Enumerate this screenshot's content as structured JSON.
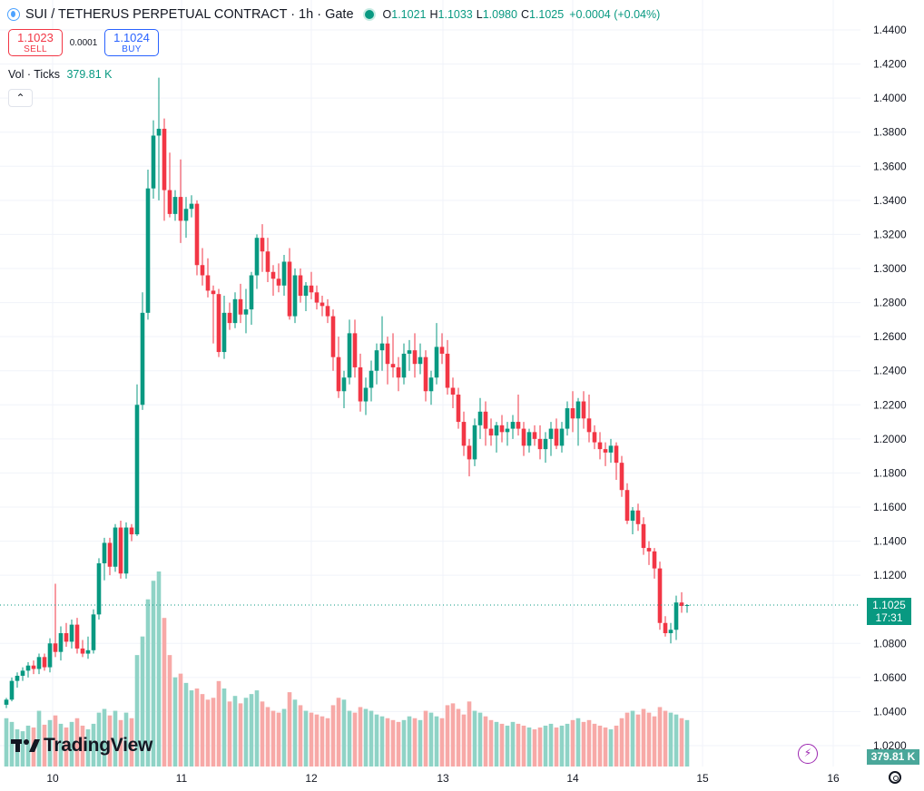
{
  "header": {
    "symbol": "SUI / TETHERUS PERPETUAL CONTRACT · 1h · Gate",
    "open_label": "O",
    "open": "1.1021",
    "high_label": "H",
    "high": "1.1033",
    "low_label": "L",
    "low": "1.0980",
    "close_label": "C",
    "close": "1.1025",
    "change": "+0.0004 (+0.04%)"
  },
  "trade": {
    "sell_price": "1.1023",
    "sell_label": "SELL",
    "spread": "0.0001",
    "buy_price": "1.1024",
    "buy_label": "BUY"
  },
  "volume_legend": {
    "label": "Vol · Ticks",
    "value": "379.81 K"
  },
  "brand": {
    "name": "TradingView"
  },
  "last_price_label": {
    "price": "1.1025",
    "countdown": "17:31"
  },
  "volume_label": "379.81 K",
  "colors": {
    "up": "#089981",
    "down": "#f23645",
    "vol_up": "#8fd3c6",
    "vol_down": "#f7a9a7",
    "grid": "#f0f3fa"
  },
  "icons": [
    "sui-logo-icon",
    "market-open-dot-icon",
    "chevron-up-icon",
    "tradingview-logo-icon",
    "lightning-icon",
    "settings-gear-icon"
  ],
  "chart_data": {
    "type": "candlestick",
    "ylim": [
      1.0,
      1.45
    ],
    "yticks": [
      "1.4400",
      "1.4200",
      "1.4000",
      "1.3800",
      "1.3600",
      "1.3400",
      "1.3200",
      "1.3000",
      "1.2800",
      "1.2600",
      "1.2400",
      "1.2200",
      "1.2000",
      "1.1800",
      "1.1600",
      "1.1400",
      "1.1200",
      "1.0800",
      "1.0600",
      "1.0400",
      "1.0200"
    ],
    "xticks": [
      {
        "label": "10",
        "x": 10
      },
      {
        "label": "11",
        "x": 34
      },
      {
        "label": "12",
        "x": 58
      },
      {
        "label": "13",
        "x": 82
      },
      {
        "label": "14",
        "x": 106
      },
      {
        "label": "15",
        "x": 130
      },
      {
        "label": "16",
        "x": 154
      }
    ],
    "last_price": 1.1025,
    "candles": [
      [
        1.044,
        1.048,
        1.042,
        1.047
      ],
      [
        1.047,
        1.06,
        1.046,
        1.058
      ],
      [
        1.058,
        1.063,
        1.054,
        1.061
      ],
      [
        1.061,
        1.066,
        1.058,
        1.064
      ],
      [
        1.064,
        1.069,
        1.06,
        1.067
      ],
      [
        1.067,
        1.07,
        1.062,
        1.065
      ],
      [
        1.065,
        1.074,
        1.062,
        1.072
      ],
      [
        1.072,
        1.074,
        1.064,
        1.066
      ],
      [
        1.066,
        1.083,
        1.063,
        1.08
      ],
      [
        1.08,
        1.115,
        1.072,
        1.075
      ],
      [
        1.075,
        1.09,
        1.07,
        1.086
      ],
      [
        1.086,
        1.092,
        1.078,
        1.081
      ],
      [
        1.081,
        1.094,
        1.077,
        1.091
      ],
      [
        1.091,
        1.095,
        1.074,
        1.077
      ],
      [
        1.077,
        1.082,
        1.072,
        1.074
      ],
      [
        1.074,
        1.084,
        1.071,
        1.076
      ],
      [
        1.076,
        1.1,
        1.074,
        1.097
      ],
      [
        1.097,
        1.13,
        1.094,
        1.127
      ],
      [
        1.127,
        1.142,
        1.117,
        1.139
      ],
      [
        1.139,
        1.142,
        1.12,
        1.125
      ],
      [
        1.125,
        1.15,
        1.122,
        1.148
      ],
      [
        1.148,
        1.152,
        1.118,
        1.121
      ],
      [
        1.121,
        1.151,
        1.118,
        1.148
      ],
      [
        1.148,
        1.15,
        1.14,
        1.144
      ],
      [
        1.144,
        1.232,
        1.143,
        1.22
      ],
      [
        1.22,
        1.286,
        1.217,
        1.274
      ],
      [
        1.274,
        1.358,
        1.27,
        1.347
      ],
      [
        1.347,
        1.387,
        1.341,
        1.378
      ],
      [
        1.378,
        1.412,
        1.34,
        1.382
      ],
      [
        1.382,
        1.388,
        1.328,
        1.346
      ],
      [
        1.346,
        1.368,
        1.33,
        1.332
      ],
      [
        1.332,
        1.346,
        1.328,
        1.342
      ],
      [
        1.342,
        1.364,
        1.315,
        1.328
      ],
      [
        1.328,
        1.342,
        1.318,
        1.335
      ],
      [
        1.335,
        1.343,
        1.33,
        1.338
      ],
      [
        1.338,
        1.34,
        1.296,
        1.302
      ],
      [
        1.302,
        1.312,
        1.29,
        1.296
      ],
      [
        1.296,
        1.306,
        1.283,
        1.287
      ],
      [
        1.287,
        1.29,
        1.256,
        1.285
      ],
      [
        1.285,
        1.288,
        1.248,
        1.251
      ],
      [
        1.251,
        1.284,
        1.247,
        1.274
      ],
      [
        1.274,
        1.28,
        1.264,
        1.268
      ],
      [
        1.268,
        1.286,
        1.265,
        1.282
      ],
      [
        1.282,
        1.291,
        1.268,
        1.273
      ],
      [
        1.273,
        1.288,
        1.262,
        1.276
      ],
      [
        1.276,
        1.298,
        1.267,
        1.296
      ],
      [
        1.296,
        1.32,
        1.288,
        1.318
      ],
      [
        1.318,
        1.326,
        1.298,
        1.31
      ],
      [
        1.31,
        1.318,
        1.292,
        1.298
      ],
      [
        1.298,
        1.302,
        1.284,
        1.294
      ],
      [
        1.294,
        1.303,
        1.286,
        1.29
      ],
      [
        1.29,
        1.308,
        1.284,
        1.304
      ],
      [
        1.304,
        1.312,
        1.27,
        1.272
      ],
      [
        1.272,
        1.3,
        1.268,
        1.296
      ],
      [
        1.296,
        1.3,
        1.28,
        1.284
      ],
      [
        1.284,
        1.292,
        1.275,
        1.29
      ],
      [
        1.29,
        1.298,
        1.282,
        1.286
      ],
      [
        1.286,
        1.29,
        1.276,
        1.28
      ],
      [
        1.28,
        1.284,
        1.272,
        1.278
      ],
      [
        1.278,
        1.282,
        1.268,
        1.272
      ],
      [
        1.272,
        1.276,
        1.24,
        1.248
      ],
      [
        1.248,
        1.26,
        1.224,
        1.228
      ],
      [
        1.228,
        1.24,
        1.218,
        1.236
      ],
      [
        1.236,
        1.27,
        1.232,
        1.262
      ],
      [
        1.262,
        1.27,
        1.236,
        1.242
      ],
      [
        1.242,
        1.25,
        1.216,
        1.222
      ],
      [
        1.222,
        1.236,
        1.214,
        1.23
      ],
      [
        1.23,
        1.246,
        1.222,
        1.24
      ],
      [
        1.24,
        1.256,
        1.232,
        1.252
      ],
      [
        1.252,
        1.272,
        1.24,
        1.256
      ],
      [
        1.256,
        1.26,
        1.232,
        1.244
      ],
      [
        1.244,
        1.262,
        1.236,
        1.242
      ],
      [
        1.242,
        1.248,
        1.228,
        1.236
      ],
      [
        1.236,
        1.256,
        1.232,
        1.25
      ],
      [
        1.25,
        1.258,
        1.24,
        1.252
      ],
      [
        1.252,
        1.262,
        1.236,
        1.244
      ],
      [
        1.244,
        1.256,
        1.238,
        1.248
      ],
      [
        1.248,
        1.252,
        1.222,
        1.228
      ],
      [
        1.228,
        1.24,
        1.22,
        1.236
      ],
      [
        1.236,
        1.268,
        1.232,
        1.254
      ],
      [
        1.254,
        1.262,
        1.244,
        1.25
      ],
      [
        1.25,
        1.258,
        1.226,
        1.23
      ],
      [
        1.23,
        1.236,
        1.218,
        1.226
      ],
      [
        1.226,
        1.23,
        1.206,
        1.21
      ],
      [
        1.21,
        1.216,
        1.19,
        1.196
      ],
      [
        1.196,
        1.2,
        1.178,
        1.188
      ],
      [
        1.188,
        1.212,
        1.184,
        1.208
      ],
      [
        1.208,
        1.224,
        1.2,
        1.216
      ],
      [
        1.216,
        1.222,
        1.196,
        1.206
      ],
      [
        1.206,
        1.212,
        1.196,
        1.202
      ],
      [
        1.202,
        1.21,
        1.192,
        1.208
      ],
      [
        1.208,
        1.214,
        1.198,
        1.204
      ],
      [
        1.204,
        1.21,
        1.196,
        1.206
      ],
      [
        1.206,
        1.214,
        1.2,
        1.21
      ],
      [
        1.21,
        1.226,
        1.202,
        1.206
      ],
      [
        1.206,
        1.21,
        1.19,
        1.196
      ],
      [
        1.196,
        1.206,
        1.192,
        1.204
      ],
      [
        1.204,
        1.208,
        1.196,
        1.2
      ],
      [
        1.2,
        1.208,
        1.188,
        1.194
      ],
      [
        1.194,
        1.204,
        1.186,
        1.2
      ],
      [
        1.2,
        1.21,
        1.19,
        1.206
      ],
      [
        1.206,
        1.212,
        1.194,
        1.196
      ],
      [
        1.196,
        1.21,
        1.192,
        1.206
      ],
      [
        1.206,
        1.222,
        1.202,
        1.218
      ],
      [
        1.218,
        1.228,
        1.204,
        1.212
      ],
      [
        1.212,
        1.224,
        1.196,
        1.222
      ],
      [
        1.222,
        1.228,
        1.206,
        1.212
      ],
      [
        1.212,
        1.226,
        1.198,
        1.204
      ],
      [
        1.204,
        1.208,
        1.194,
        1.198
      ],
      [
        1.198,
        1.204,
        1.188,
        1.194
      ],
      [
        1.194,
        1.198,
        1.184,
        1.192
      ],
      [
        1.192,
        1.2,
        1.186,
        1.196
      ],
      [
        1.196,
        1.198,
        1.176,
        1.186
      ],
      [
        1.186,
        1.19,
        1.166,
        1.17
      ],
      [
        1.17,
        1.174,
        1.15,
        1.152
      ],
      [
        1.152,
        1.16,
        1.144,
        1.158
      ],
      [
        1.158,
        1.162,
        1.146,
        1.15
      ],
      [
        1.15,
        1.154,
        1.132,
        1.136
      ],
      [
        1.136,
        1.14,
        1.126,
        1.134
      ],
      [
        1.134,
        1.136,
        1.118,
        1.124
      ],
      [
        1.124,
        1.128,
        1.088,
        1.092
      ],
      [
        1.092,
        1.096,
        1.084,
        1.086
      ],
      [
        1.086,
        1.092,
        1.08,
        1.088
      ],
      [
        1.088,
        1.108,
        1.082,
        1.104
      ],
      [
        1.104,
        1.11,
        1.098,
        1.102
      ],
      [
        1.102,
        1.103,
        1.098,
        1.1025
      ]
    ],
    "volume": [
      52,
      48,
      40,
      38,
      44,
      42,
      60,
      45,
      50,
      55,
      46,
      42,
      48,
      52,
      44,
      40,
      46,
      58,
      62,
      55,
      60,
      50,
      58,
      52,
      120,
      140,
      180,
      200,
      210,
      160,
      120,
      96,
      100,
      90,
      82,
      84,
      78,
      72,
      74,
      92,
      84,
      70,
      76,
      68,
      74,
      78,
      82,
      70,
      64,
      60,
      58,
      62,
      80,
      72,
      66,
      60,
      58,
      56,
      54,
      52,
      66,
      74,
      72,
      60,
      58,
      64,
      62,
      60,
      56,
      54,
      52,
      50,
      48,
      50,
      54,
      52,
      50,
      60,
      58,
      54,
      52,
      66,
      68,
      62,
      56,
      70,
      60,
      58,
      54,
      50,
      48,
      46,
      44,
      48,
      46,
      44,
      42,
      40,
      42,
      44,
      46,
      42,
      44,
      46,
      50,
      52,
      48,
      50,
      46,
      44,
      42,
      40,
      44,
      52,
      58,
      60,
      56,
      62,
      58,
      54,
      64,
      60,
      58,
      56,
      52,
      50
    ]
  }
}
